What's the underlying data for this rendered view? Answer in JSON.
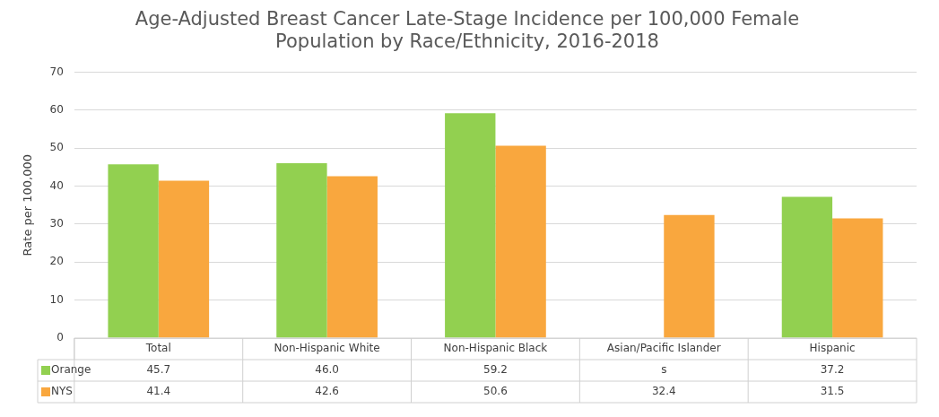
{
  "chart_data": {
    "type": "bar",
    "title": "Age-Adjusted Breast Cancer Late-Stage Incidence per 100,000 Female Population by Race/Ethnicity, 2016-2018",
    "ylabel": "Rate per 100,000",
    "categories": [
      "Total",
      "Non-Hispanic White",
      "Non-Hispanic Black",
      "Asian/Pacific Islander",
      "Hispanic"
    ],
    "series": [
      {
        "name": "Orange",
        "color": "#92d050",
        "values": [
          45.7,
          46.0,
          59.2,
          null,
          37.2
        ],
        "value_labels": [
          "45.7",
          "46.0",
          "59.2",
          "s",
          "37.2"
        ]
      },
      {
        "name": "NYS",
        "color": "#f9a73e",
        "values": [
          41.4,
          42.6,
          50.6,
          32.4,
          31.5
        ],
        "value_labels": [
          "41.4",
          "42.6",
          "50.6",
          "32.4",
          "31.5"
        ]
      }
    ],
    "ylim": [
      0,
      70
    ],
    "yticks": [
      0,
      10,
      20,
      30,
      40,
      50,
      60,
      70
    ],
    "grid": "y",
    "legend": "bottom left"
  }
}
